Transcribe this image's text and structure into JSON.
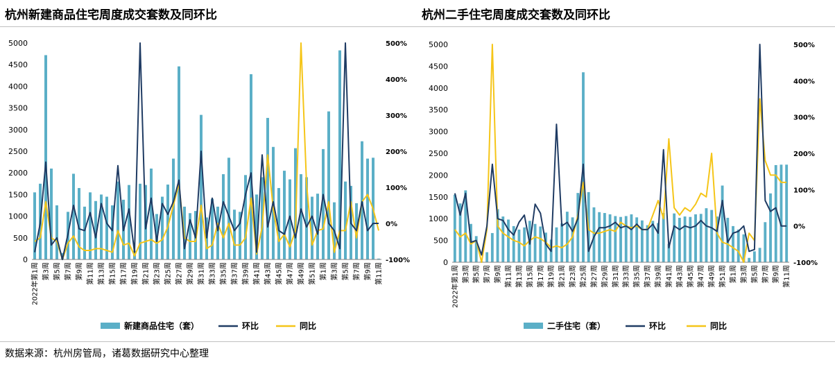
{
  "titles": {
    "left": "杭州新建商品住宅周度成交套数及同环比",
    "right": "杭州二手住宅周度成交套数及同环比"
  },
  "source": "数据来源：杭州房管局，诸葛数据研究中心整理",
  "colors": {
    "bar": "#5bafc7",
    "mom": "#1f3b63",
    "yoy": "#f5c518",
    "axis": "#808080"
  },
  "chart_data": [
    {
      "type": "bar",
      "title": "杭州新建商品住宅周度成交套数及同环比",
      "y_left_ticks": [
        "0",
        "500",
        "1000",
        "1500",
        "2000",
        "2500",
        "3000",
        "3500",
        "4000",
        "4500",
        "5000"
      ],
      "y_right_ticks": [
        "-100%",
        "0%",
        "100%",
        "200%",
        "300%",
        "400%",
        "500%"
      ],
      "ylim_left": [
        0,
        5000
      ],
      "ylim_right": [
        -100,
        500
      ],
      "categories": [
        "2022年第1周",
        "第2周",
        "第3周",
        "第4周",
        "第5周",
        "第6周",
        "第7周",
        "第8周",
        "第9周",
        "第10周",
        "第11周",
        "第12周",
        "第13周",
        "第14周",
        "第15周",
        "第16周",
        "第17周",
        "第18周",
        "第19周",
        "第20周",
        "第21周",
        "第22周",
        "第23周",
        "第24周",
        "第25周",
        "第26周",
        "第27周",
        "第28周",
        "第29周",
        "第30周",
        "第31周",
        "第32周",
        "第33周",
        "第34周",
        "第35周",
        "第36周",
        "第37周",
        "第38周",
        "第39周",
        "第40周",
        "第41周",
        "第42周",
        "第43周",
        "第44周",
        "第45周",
        "第46周",
        "第47周",
        "第48周",
        "第49周",
        "第50周",
        "第51周",
        "第52周",
        "第1周",
        "第2周",
        "第3周",
        "第4周",
        "第5周",
        "第6周",
        "第7周",
        "第8周",
        "第9周",
        "第10周",
        "第11周"
      ],
      "category_labels_shown": [
        "2022年第1周",
        "第3周",
        "第5周",
        "第7周",
        "第9周",
        "第11周",
        "第13周",
        "第15周",
        "第17周",
        "第19周",
        "第21周",
        "第23周",
        "第25周",
        "第27周",
        "第29周",
        "第31周",
        "第33周",
        "第35周",
        "第37周",
        "第39周",
        "第41周",
        "第43周",
        "第45周",
        "第47周",
        "第49周",
        "第51周",
        "第1周",
        "第3周",
        "第5周",
        "第7周",
        "第9周",
        "第11周"
      ],
      "series": [
        {
          "name": "新建商品住宅（套）",
          "kind": "bar",
          "values": [
            1550,
            1750,
            4720,
            2100,
            1250,
            150,
            1100,
            1980,
            1650,
            1220,
            1550,
            1350,
            1500,
            1450,
            1250,
            1800,
            1380,
            1720,
            200,
            1750,
            1720,
            2100,
            1050,
            1450,
            1730,
            2330,
            4460,
            1220,
            1070,
            1120,
            3340,
            970,
            1400,
            1220,
            1970,
            2350,
            1150,
            1100,
            1950,
            4280,
            1500,
            1900,
            3270,
            2600,
            1650,
            2050,
            1850,
            2570,
            1970,
            1900,
            1450,
            1520,
            2550,
            3420,
            1320,
            4830,
            1800,
            1700,
            1300,
            2730,
            2330,
            2350,
            20
          ]
        },
        {
          "name": "环比",
          "kind": "line",
          "axis": "right",
          "values": [
            -80,
            0,
            170,
            -60,
            -40,
            -100,
            -30,
            50,
            -15,
            -20,
            30,
            -40,
            55,
            0,
            -20,
            160,
            -20,
            40,
            -80,
            560,
            -15,
            70,
            -50,
            55,
            25,
            60,
            120,
            -70,
            10,
            -40,
            200,
            -40,
            70,
            -20,
            60,
            20,
            -20,
            0,
            80,
            140,
            -80,
            190,
            -10,
            60,
            -20,
            -30,
            20,
            -40,
            40,
            -10,
            20,
            -30,
            80,
            0,
            -20,
            -70,
            560,
            0,
            -20,
            60,
            -20,
            0,
            0
          ]
        },
        {
          "name": "同比",
          "kind": "line",
          "axis": "right",
          "values": [
            -50,
            -40,
            60,
            -40,
            -50,
            -100,
            -55,
            -35,
            -65,
            -75,
            -75,
            -70,
            -70,
            -75,
            -80,
            -20,
            -60,
            -55,
            -90,
            -55,
            -50,
            -45,
            -55,
            -45,
            -10,
            50,
            110,
            -40,
            -50,
            -50,
            50,
            -70,
            -60,
            0,
            -40,
            0,
            -60,
            -60,
            -40,
            70,
            -85,
            -10,
            190,
            40,
            -50,
            -30,
            -65,
            -20,
            500,
            110,
            -60,
            -20,
            -15,
            60,
            -80,
            -20,
            -20,
            60,
            -40,
            60,
            80,
            40,
            -20
          ]
        }
      ],
      "legend": [
        "新建商品住宅（套）",
        "环比",
        "同比"
      ],
      "legend_position": "bottom"
    },
    {
      "type": "bar",
      "title": "杭州二手住宅周度成交套数及同环比",
      "y_left_ticks": [
        "0",
        "500",
        "1000",
        "1500",
        "2000",
        "2500",
        "3000",
        "3500",
        "4000",
        "4500",
        "5000"
      ],
      "y_right_ticks": [
        "-100%",
        "0%",
        "100%",
        "200%",
        "300%",
        "400%",
        "500%"
      ],
      "ylim_left": [
        0,
        5000
      ],
      "ylim_right": [
        -100,
        500
      ],
      "categories": [
        "2022年第1周",
        "第2周",
        "第3周",
        "第4周",
        "第5周",
        "第6周",
        "第7周",
        "第8周",
        "第9周",
        "第10周",
        "第11周",
        "第12周",
        "第13周",
        "第14周",
        "第15周",
        "第16周",
        "第17周",
        "第18周",
        "第19周",
        "第20周",
        "第21周",
        "第22周",
        "第23周",
        "第24周",
        "第25周",
        "第26周",
        "第27周",
        "第28周",
        "第29周",
        "第30周",
        "第31周",
        "第32周",
        "第33周",
        "第34周",
        "第35周",
        "第36周",
        "第37周",
        "第38周",
        "第39周",
        "第40周",
        "第41周",
        "第42周",
        "第43周",
        "第44周",
        "第45周",
        "第46周",
        "第47周",
        "第48周",
        "第49周",
        "第50周",
        "第51周",
        "第52周",
        "第1周",
        "第2周",
        "第3周",
        "第4周",
        "第5周",
        "第6周",
        "第7周",
        "第8周",
        "第9周",
        "第10周",
        "第11周"
      ],
      "category_labels_shown": [
        "2022年第1周",
        "第3周",
        "第5周",
        "第7周",
        "第9周",
        "第11周",
        "第13周",
        "第15周",
        "第17周",
        "第19周",
        "第21周",
        "第23周",
        "第25周",
        "第27周",
        "第29周",
        "第31周",
        "第33周",
        "第35周",
        "第37周",
        "第39周",
        "第41周",
        "第43周",
        "第45周",
        "第47周",
        "第49周",
        "第51周",
        "第1周",
        "第3周",
        "第5周",
        "第7周",
        "第9周",
        "第11周"
      ],
      "series": [
        {
          "name": "二手住宅（套）",
          "kind": "bar",
          "values": [
            1550,
            1350,
            1650,
            880,
            600,
            20,
            230,
            670,
            1220,
            1050,
            980,
            830,
            750,
            800,
            950,
            880,
            820,
            680,
            520,
            800,
            890,
            1160,
            1030,
            1590,
            4360,
            1610,
            1260,
            1150,
            1130,
            1100,
            1060,
            1040,
            1060,
            1100,
            1030,
            960,
            850,
            950,
            900,
            1130,
            420,
            1120,
            1020,
            1050,
            1040,
            1100,
            1110,
            1240,
            1200,
            1050,
            1760,
            1020,
            830,
            750,
            640,
            100,
            250,
            330,
            920,
            1580,
            2230,
            2240,
            2240
          ]
        },
        {
          "name": "环比",
          "kind": "line",
          "axis": "right",
          "values": [
            90,
            30,
            90,
            -45,
            -40,
            -80,
            0,
            170,
            20,
            15,
            -10,
            -25,
            10,
            30,
            -50,
            60,
            35,
            -50,
            -70,
            280,
            0,
            10,
            -15,
            20,
            170,
            -70,
            -30,
            -5,
            -5,
            0,
            10,
            -5,
            0,
            -10,
            5,
            -10,
            -10,
            5,
            -20,
            210,
            -60,
            0,
            -10,
            0,
            -5,
            0,
            15,
            0,
            -5,
            -15,
            70,
            -45,
            -20,
            -15,
            0,
            -70,
            -65,
            700,
            70,
            40,
            50,
            0,
            0
          ]
        },
        {
          "name": "同比",
          "kind": "line",
          "axis": "right",
          "values": [
            -10,
            -30,
            -20,
            -50,
            -40,
            -100,
            -10,
            500,
            0,
            -20,
            -30,
            -40,
            -45,
            -55,
            -40,
            -30,
            -35,
            -45,
            -60,
            -55,
            -60,
            -50,
            -30,
            30,
            120,
            -10,
            -20,
            -20,
            -15,
            -10,
            -15,
            10,
            0,
            -5,
            0,
            -10,
            -10,
            30,
            70,
            20,
            240,
            50,
            30,
            50,
            40,
            60,
            90,
            80,
            200,
            -20,
            -45,
            -50,
            -60,
            -70,
            -100,
            -20,
            -40,
            350,
            180,
            140,
            140,
            120,
            120
          ]
        }
      ],
      "legend": [
        "二手住宅（套）",
        "环比",
        "同比"
      ],
      "legend_position": "bottom"
    }
  ]
}
